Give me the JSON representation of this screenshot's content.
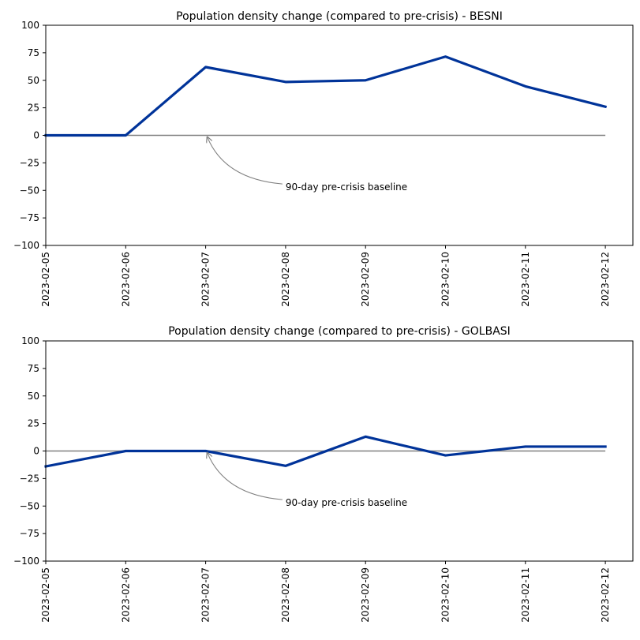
{
  "chart_data": [
    {
      "type": "line",
      "title": "Population density change (compared to pre-crisis) - BESNI",
      "xlabel": "",
      "ylabel": "",
      "x": [
        "2023-02-05",
        "2023-02-06",
        "2023-02-07",
        "2023-02-08",
        "2023-02-09",
        "2023-02-10",
        "2023-02-11",
        "2023-02-12"
      ],
      "series": [
        {
          "values": [
            0,
            0,
            62,
            48.5,
            50,
            71.5,
            44.5,
            26
          ],
          "color": "#003399"
        }
      ],
      "baseline": {
        "value": 0,
        "color": "#808080"
      },
      "annotation": {
        "text": "90-day pre-crisis baseline",
        "target_x": "2023-02-07",
        "target_y": 0,
        "text_x": "2023-02-08",
        "text_y": -47
      },
      "ylim": [
        -100,
        100
      ],
      "yticks": [
        "100",
        "75",
        "50",
        "25",
        "0",
        "−25",
        "−50",
        "−75",
        "−100"
      ],
      "grid": false,
      "legend": "none"
    },
    {
      "type": "line",
      "title": "Population density change (compared to pre-crisis) - GOLBASI",
      "xlabel": "",
      "ylabel": "",
      "x": [
        "2023-02-05",
        "2023-02-06",
        "2023-02-07",
        "2023-02-08",
        "2023-02-09",
        "2023-02-10",
        "2023-02-11",
        "2023-02-12"
      ],
      "series": [
        {
          "values": [
            -14,
            0,
            0,
            -13.5,
            13,
            -4,
            4,
            4
          ],
          "color": "#003399"
        }
      ],
      "baseline": {
        "value": 0,
        "color": "#808080"
      },
      "annotation": {
        "text": "90-day pre-crisis baseline",
        "target_x": "2023-02-07",
        "target_y": 0,
        "text_x": "2023-02-08",
        "text_y": -47
      },
      "ylim": [
        -100,
        100
      ],
      "yticks": [
        "100",
        "75",
        "50",
        "25",
        "0",
        "−25",
        "−50",
        "−75",
        "−100"
      ],
      "grid": false,
      "legend": "none"
    }
  ]
}
